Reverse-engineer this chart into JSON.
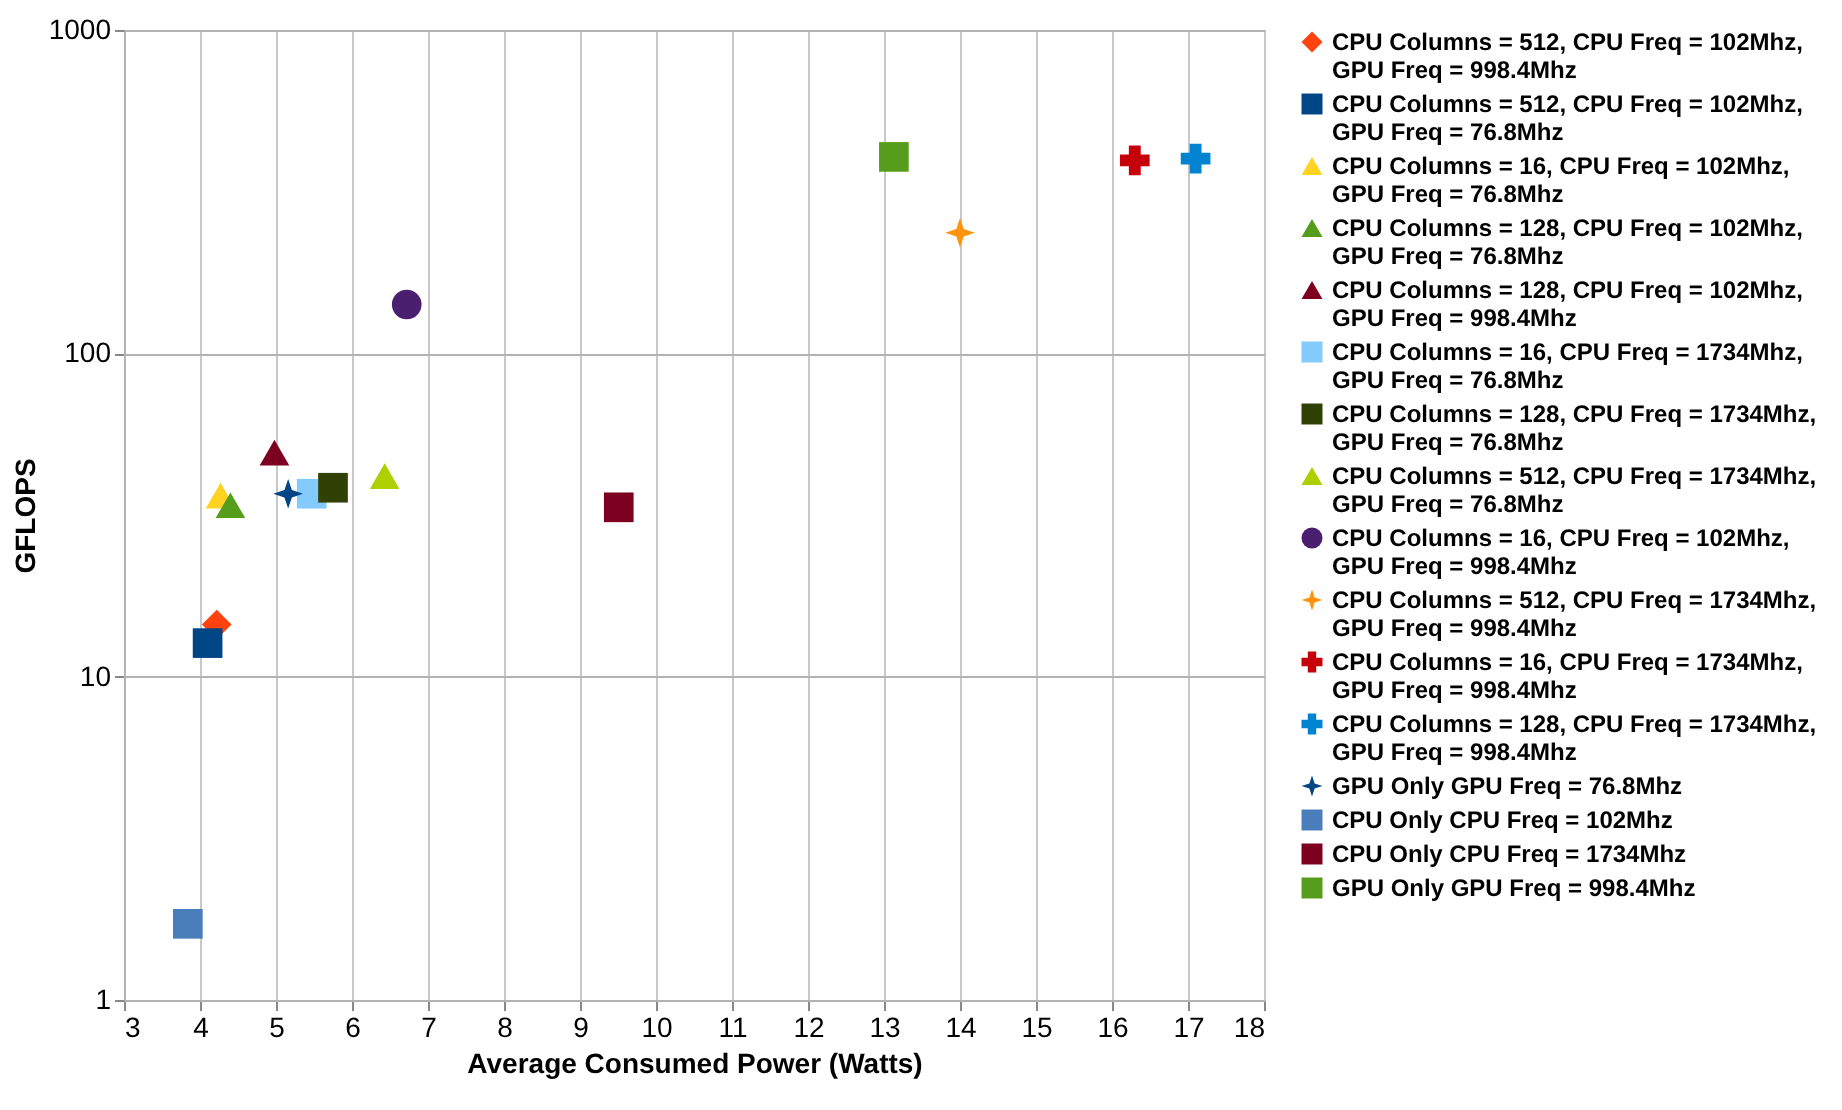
{
  "chart_data": {
    "type": "scatter",
    "xlabel": "Average Consumed Power (Watts)",
    "ylabel": "GFLOPS",
    "log": "y",
    "grid": true,
    "legend": "right",
    "xlim": [
      3,
      18
    ],
    "xticks": [
      3,
      4,
      5,
      6,
      7,
      8,
      9,
      10,
      11,
      12,
      13,
      14,
      15,
      16,
      17,
      18
    ],
    "ylim": [
      1,
      1000
    ],
    "yticks": [
      1,
      10,
      100,
      1000
    ],
    "series": [
      {
        "name": "CPU Columns = 512, CPU Freq = 102Mhz, GPU Freq = 998.4Mhz",
        "color": "#ff420e",
        "marker": "diamond",
        "x": [
          4.22
        ],
        "values": [
          14.5
        ]
      },
      {
        "name": "CPU Columns = 512, CPU Freq = 102Mhz, GPU Freq = 76.8Mhz",
        "color": "#004586",
        "marker": "square",
        "x": [
          4.1
        ],
        "values": [
          12.7
        ]
      },
      {
        "name": "CPU Columns = 16, CPU Freq = 102Mhz, GPU Freq = 76.8Mhz",
        "color": "#ffd320",
        "marker": "triangle",
        "x": [
          4.27
        ],
        "values": [
          36.3
        ]
      },
      {
        "name": "CPU Columns = 128, CPU Freq = 102Mhz, GPU Freq = 76.8Mhz",
        "color": "#579d1c",
        "marker": "triangle",
        "x": [
          4.4
        ],
        "values": [
          33.9
        ]
      },
      {
        "name": "CPU Columns = 128, CPU Freq = 102Mhz, GPU Freq = 998.4Mhz",
        "color": "#7e0021",
        "marker": "triangle",
        "x": [
          4.98
        ],
        "values": [
          49.3
        ]
      },
      {
        "name": "CPU Columns = 16, CPU Freq = 1734Mhz, GPU Freq = 76.8Mhz",
        "color": "#83caff",
        "marker": "square",
        "x": [
          5.47
        ],
        "values": [
          36.8
        ]
      },
      {
        "name": "CPU Columns = 128, CPU Freq = 1734Mhz, GPU Freq = 76.8Mhz",
        "color": "#314004",
        "marker": "square",
        "x": [
          5.75
        ],
        "values": [
          38.4
        ]
      },
      {
        "name": "CPU Columns = 512, CPU Freq = 1734Mhz, GPU Freq = 76.8Mhz",
        "color": "#aecf00",
        "marker": "triangle",
        "x": [
          6.43
        ],
        "values": [
          41.7
        ]
      },
      {
        "name": "CPU Columns = 16, CPU Freq = 102Mhz, GPU Freq = 998.4Mhz",
        "color": "#4b1f6f",
        "marker": "circle",
        "x": [
          6.72
        ],
        "values": [
          141.6
        ]
      },
      {
        "name": "CPU Columns = 512, CPU Freq = 1734Mhz, GPU Freq = 998.4Mhz",
        "color": "#ff950e",
        "marker": "star",
        "x": [
          14.0
        ],
        "values": [
          236
        ]
      },
      {
        "name": "CPU Columns = 16, CPU Freq = 1734Mhz, GPU Freq = 998.4Mhz",
        "color": "#c5000b",
        "marker": "cross",
        "x": [
          16.3
        ],
        "values": [
          395
        ]
      },
      {
        "name": "CPU Columns = 128, CPU Freq = 1734Mhz, GPU Freq = 998.4Mhz",
        "color": "#0084d1",
        "marker": "cross",
        "x": [
          17.1
        ],
        "values": [
          400
        ]
      },
      {
        "name": "GPU Only GPU Freq = 76.8Mhz",
        "color": "#004586",
        "marker": "star",
        "x": [
          5.16
        ],
        "values": [
          36.8
        ]
      },
      {
        "name": "CPU Only CPU Freq = 102Mhz",
        "color": "#4a7ebb",
        "marker": "square",
        "x": [
          3.84
        ],
        "values": [
          1.72
        ]
      },
      {
        "name": "CPU Only CPU Freq = 1734Mhz",
        "color": "#7e0021",
        "marker": "square",
        "x": [
          9.51
        ],
        "values": [
          33.4
        ]
      },
      {
        "name": "GPU Only GPU Freq = 998.4Mhz",
        "color": "#579d1c",
        "marker": "square",
        "x": [
          13.13
        ],
        "values": [
          405
        ]
      }
    ]
  }
}
